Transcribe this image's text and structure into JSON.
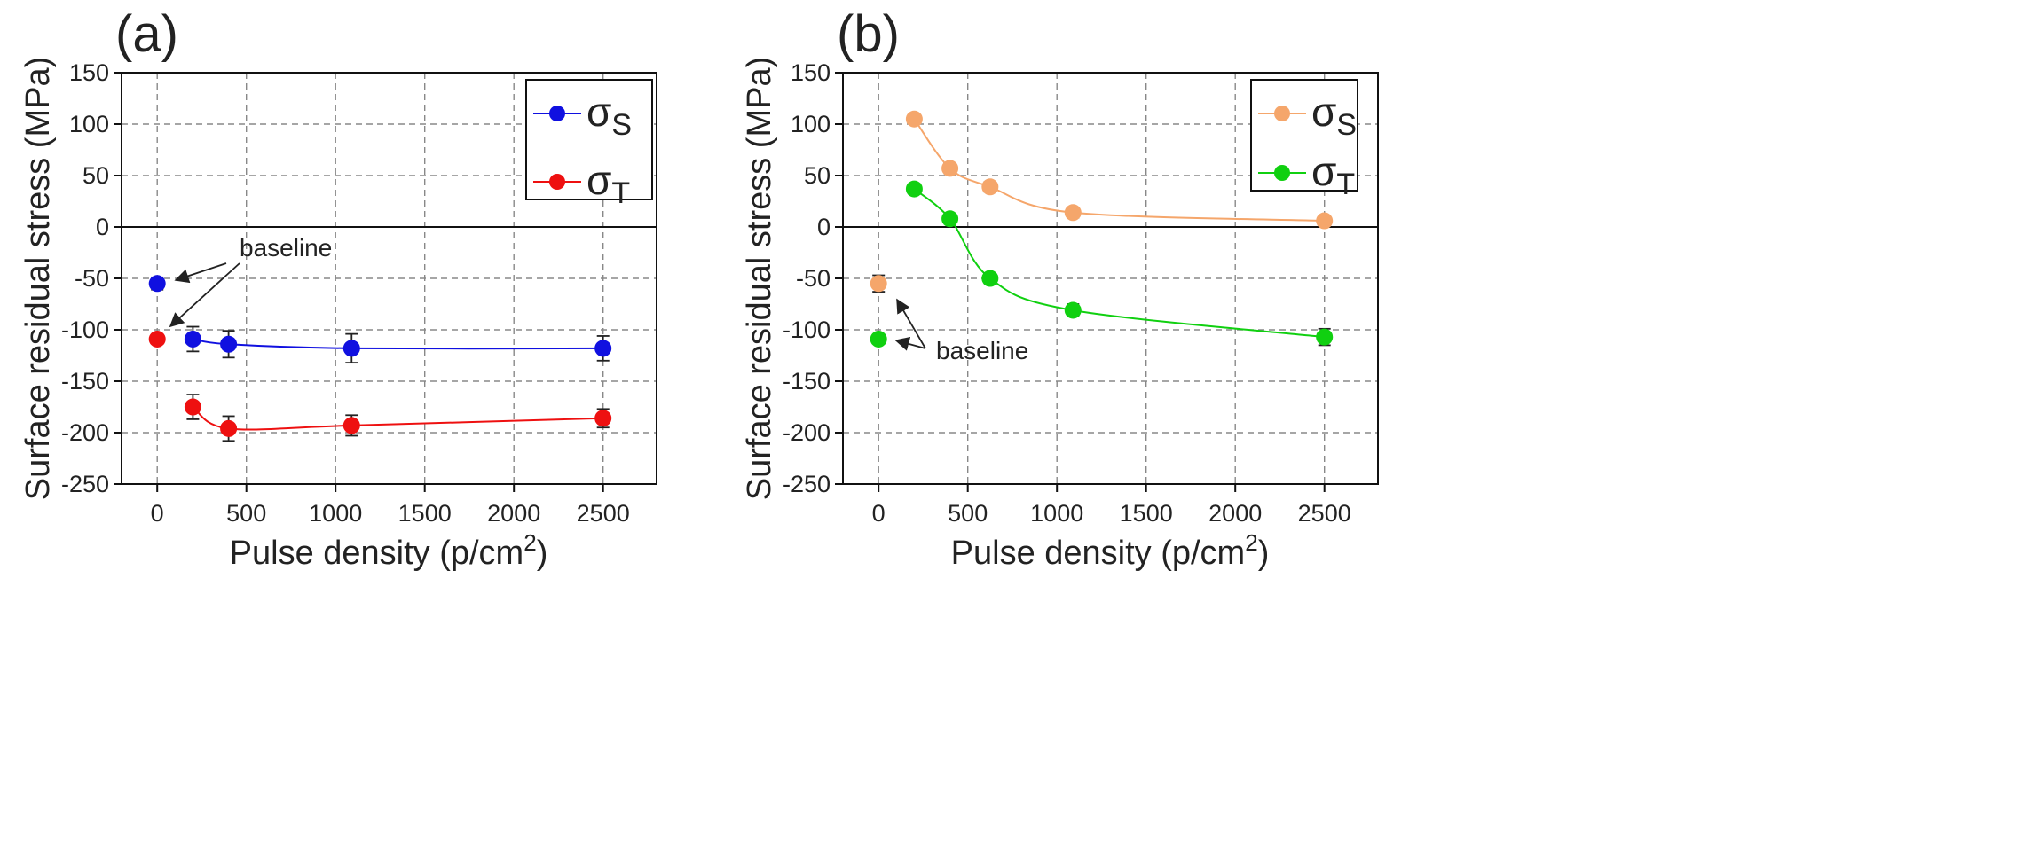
{
  "chart_data": [
    {
      "type": "line",
      "panel_label": "(a)",
      "title": "",
      "xlabel": "Pulse density (p/cm",
      "xlabel_sup": "2",
      "xlabel_end": ")",
      "ylabel": "Surface residual stress (MPa)",
      "xlim": [
        -200,
        2800
      ],
      "ylim": [
        -250,
        150
      ],
      "xticks": [
        0,
        500,
        1000,
        1500,
        2000,
        2500
      ],
      "yticks": [
        -250,
        -200,
        -150,
        -100,
        -50,
        0,
        50,
        100,
        150
      ],
      "grid": true,
      "zero_line": true,
      "legend_position": "top-right",
      "series": [
        {
          "name": "σS",
          "symbol": "σ",
          "subscript": "S",
          "color": "#1010e0",
          "connected_points": [
            [
              200,
              -109
            ],
            [
              400,
              -114
            ],
            [
              1090,
              -118
            ],
            [
              2500,
              -118
            ]
          ],
          "errors": [
            12,
            13,
            14,
            12
          ],
          "baseline_point": [
            0,
            -55
          ],
          "baseline_error": 6
        },
        {
          "name": "σT",
          "symbol": "σ",
          "subscript": "T",
          "color": "#ee1010",
          "connected_points": [
            [
              200,
              -175
            ],
            [
              400,
              -196
            ],
            [
              1090,
              -193
            ],
            [
              2500,
              -186
            ]
          ],
          "errors": [
            12,
            12,
            10,
            9
          ],
          "baseline_point": [
            0,
            -109
          ],
          "baseline_error": 4
        }
      ],
      "annotations": [
        {
          "text": "baseline",
          "anchor": [
            250,
            -20
          ]
        }
      ]
    },
    {
      "type": "line",
      "panel_label": "(b)",
      "title": "",
      "xlabel": "Pulse density (p/cm",
      "xlabel_sup": "2",
      "xlabel_end": ")",
      "ylabel": "Surface residual stress (MPa)",
      "xlim": [
        -200,
        2800
      ],
      "ylim": [
        -250,
        150
      ],
      "xticks": [
        0,
        500,
        1000,
        1500,
        2000,
        2500
      ],
      "yticks": [
        -250,
        -200,
        -150,
        -100,
        -50,
        0,
        50,
        100,
        150
      ],
      "grid": true,
      "zero_line": true,
      "legend_position": "top-right",
      "series": [
        {
          "name": "σS",
          "symbol": "σ",
          "subscript": "S",
          "color": "#f5a66b",
          "connected_points": [
            [
              200,
              105
            ],
            [
              400,
              57
            ],
            [
              625,
              39
            ],
            [
              1090,
              14
            ],
            [
              2500,
              6
            ]
          ],
          "errors": [
            4,
            5,
            5,
            5,
            5
          ],
          "baseline_point": [
            0,
            -55
          ],
          "baseline_error": 8
        },
        {
          "name": "σT",
          "symbol": "σ",
          "subscript": "T",
          "color": "#10d010",
          "connected_points": [
            [
              200,
              37
            ],
            [
              400,
              8
            ],
            [
              625,
              -50
            ],
            [
              1090,
              -81
            ],
            [
              2500,
              -107
            ]
          ],
          "errors": [
            5,
            5,
            5,
            6,
            8
          ],
          "baseline_point": [
            0,
            -109
          ],
          "baseline_error": 4
        }
      ],
      "annotations": [
        {
          "text": "baseline",
          "anchor": [
            260,
            -121
          ]
        }
      ]
    }
  ]
}
